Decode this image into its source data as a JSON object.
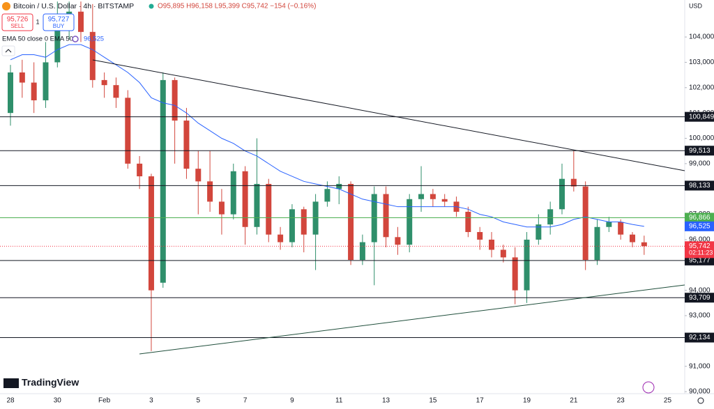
{
  "header": {
    "symbol": "Bitcoin / U.S. Dollar · 4h · BITSTAMP",
    "ohlc": "O95,895 H96,158 L95,399 C95,742 −154 (−0.16%)",
    "sell_price": "95,726",
    "sell_label": "SELL",
    "spread": "1",
    "buy_price": "95,727",
    "buy_label": "BUY",
    "indicator": "EMA 50 close 0 EMA 50",
    "indicator_value": "96,525",
    "currency": "USD",
    "logo": "TradingView"
  },
  "chart_data": {
    "type": "candlestick",
    "categories": [
      "28",
      null,
      null,
      null,
      "30",
      null,
      null,
      null,
      "Feb",
      null,
      null,
      null,
      "3",
      null,
      null,
      null,
      "5",
      null,
      null,
      null,
      "7",
      null,
      null,
      null,
      "9",
      null,
      null,
      null,
      "11",
      null,
      null,
      null,
      "13",
      null,
      null,
      null,
      "15",
      null,
      null,
      null,
      "17",
      null,
      null,
      null,
      "19",
      null,
      null,
      null,
      "21",
      null,
      null,
      null,
      "23",
      null,
      null,
      null,
      "25"
    ],
    "open": [
      101000,
      102600,
      102200,
      101500,
      103000,
      104500,
      105000,
      104200,
      102300,
      102100,
      101600,
      99000,
      98500,
      94300,
      102300,
      100700,
      98800,
      98300,
      97500,
      97000,
      98700,
      96500,
      98200,
      96200,
      95900,
      97200,
      96200,
      97500,
      98000,
      98200,
      95200,
      95900,
      97800,
      96100,
      95800,
      97600,
      97800,
      97600,
      97500,
      97100,
      96300,
      96000,
      95600,
      95300,
      94000,
      96000,
      96600,
      97200,
      98400,
      98100,
      95200,
      96500,
      96700,
      96200,
      95895,
      null,
      null
    ],
    "high": [
      102900,
      103100,
      103000,
      103800,
      105400,
      105400,
      105400,
      105300,
      102600,
      102400,
      101900,
      99300,
      98600,
      102600,
      102400,
      101200,
      99500,
      99500,
      98000,
      99000,
      98900,
      100000,
      98400,
      96500,
      97400,
      97300,
      97800,
      98300,
      98500,
      98300,
      96200,
      98100,
      98100,
      96500,
      97800,
      98900,
      98000,
      97800,
      97700,
      97300,
      96500,
      96300,
      95800,
      95700,
      96300,
      97000,
      97500,
      99000,
      99500,
      98300,
      96800,
      96900,
      96800,
      96300,
      96158,
      null,
      null
    ],
    "low": [
      100500,
      101600,
      101000,
      101200,
      102800,
      103900,
      103800,
      102000,
      101600,
      101200,
      98800,
      98000,
      91600,
      94100,
      99000,
      98400,
      97000,
      97100,
      96200,
      96800,
      95800,
      96200,
      95900,
      95600,
      95700,
      95500,
      94800,
      97300,
      97400,
      95000,
      95000,
      94200,
      95700,
      95400,
      95500,
      97100,
      97300,
      97300,
      96900,
      96100,
      95600,
      95300,
      95100,
      93450,
      93500,
      95800,
      96200,
      97000,
      97900,
      94800,
      95000,
      96300,
      96000,
      95700,
      95399,
      null,
      null
    ],
    "close": [
      102600,
      102200,
      101500,
      103000,
      104500,
      105000,
      104200,
      102300,
      102100,
      101600,
      99000,
      98500,
      94000,
      102300,
      100700,
      98800,
      98300,
      97500,
      97000,
      98700,
      96500,
      98200,
      96200,
      95900,
      97200,
      96200,
      97500,
      98000,
      98200,
      95200,
      95900,
      97800,
      96100,
      95800,
      97600,
      97800,
      97600,
      97500,
      97100,
      96300,
      96000,
      95600,
      95300,
      94000,
      96000,
      96600,
      97200,
      98400,
      98100,
      95200,
      96500,
      96700,
      96200,
      95900,
      95742,
      null,
      null
    ],
    "up_color": "#2f8f6b",
    "down_color": "#d2463c",
    "ema": {
      "color": "#2962ff",
      "values": [
        103100,
        103300,
        103300,
        103200,
        103500,
        103700,
        103700,
        103500,
        103200,
        102900,
        102600,
        102200,
        101600,
        101400,
        101300,
        101000,
        100600,
        100300,
        100000,
        99800,
        99500,
        99300,
        99000,
        98700,
        98500,
        98300,
        98200,
        98100,
        98000,
        97800,
        97600,
        97500,
        97400,
        97300,
        97300,
        97300,
        97300,
        97300,
        97300,
        97200,
        97000,
        96900,
        96700,
        96600,
        96500,
        96500,
        96500,
        96600,
        96800,
        96900,
        96800,
        96700,
        96700,
        96600,
        96525,
        null,
        null
      ]
    },
    "last_price": {
      "value": 95742,
      "label": "95,742",
      "countdown": "02:11:23",
      "color": "#f23645"
    },
    "levels": [
      {
        "value": 100849,
        "label": "100,849",
        "color": "#131722"
      },
      {
        "value": 99513,
        "label": "99,513",
        "color": "#131722"
      },
      {
        "value": 98133,
        "label": "98,133",
        "color": "#131722"
      },
      {
        "value": 96866,
        "label": "96,866",
        "color": "#4caf50"
      },
      {
        "value": 95177,
        "label": "95,177",
        "color": "#131722"
      },
      {
        "value": 93709,
        "label": "93,709",
        "color": "#131722"
      },
      {
        "value": 92134,
        "label": "92,134",
        "color": "#131722"
      }
    ],
    "ylim": [
      89920,
      105460
    ],
    "yticks": [
      {
        "value": 104000,
        "label": "104,000"
      },
      {
        "value": 103000,
        "label": "103,000"
      },
      {
        "value": 102000,
        "label": "102,000"
      },
      {
        "value": 101000,
        "label": "101,000"
      },
      {
        "value": 100000,
        "label": "100,000"
      },
      {
        "value": 99000,
        "label": "99,000"
      },
      {
        "value": 97000,
        "label": "97,000"
      },
      {
        "value": 96000,
        "label": "96,000"
      },
      {
        "value": 94000,
        "label": "94,000"
      },
      {
        "value": 93000,
        "label": "93,000"
      },
      {
        "value": 91000,
        "label": "91,000"
      },
      {
        "value": 90000,
        "label": "90,000"
      }
    ]
  }
}
